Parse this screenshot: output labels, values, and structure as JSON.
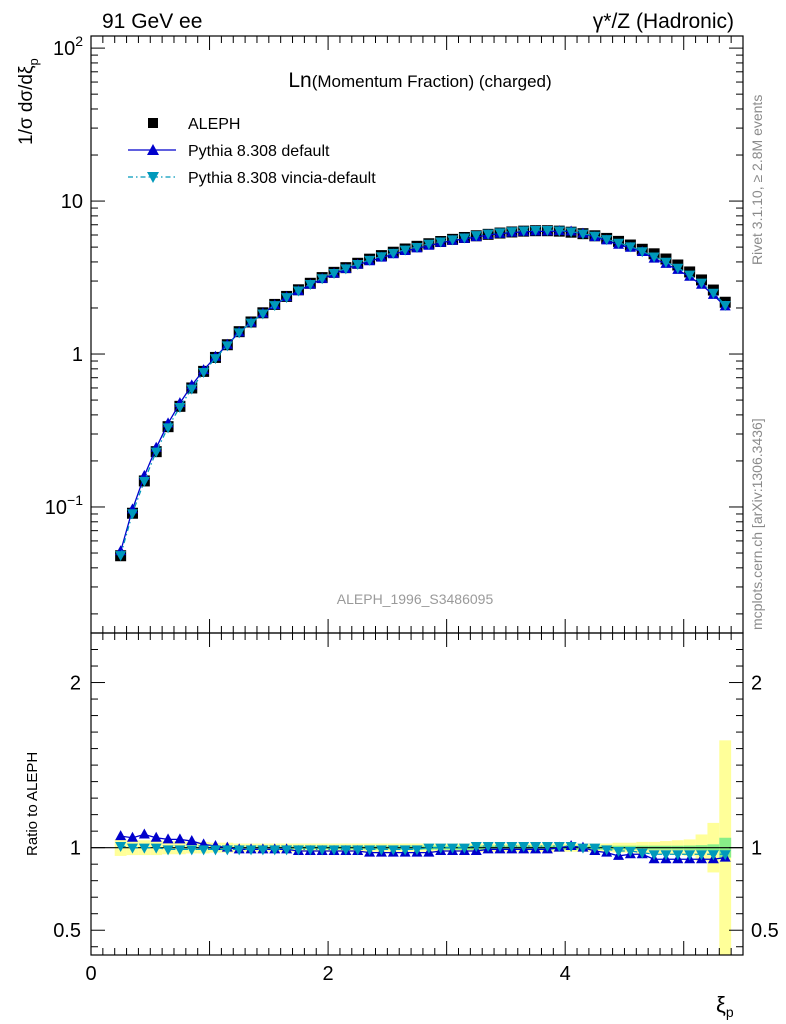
{
  "header": {
    "left": "91 GeV ee",
    "right": "γ*/Z (Hadronic)"
  },
  "side_text": {
    "rivet": "Rivet 3.1.10, ≥ 2.8M events",
    "mcplots": "mcplots.cern.ch [arXiv:1306.3436]"
  },
  "chart_data": {
    "type": "line",
    "title": "Ln(Momentum Fraction) (charged)",
    "title_prefix": "Ln",
    "title_rest": "(Momentum Fraction) (charged)",
    "analysis_id": "ALEPH_1996_S3486095",
    "ylabel": "1/σ dσ/dξ_p",
    "ylabel_main": "1/σ dσ/dξ",
    "ylabel_sub": "p",
    "xlabel_main": "ξ",
    "xlabel_sub": "p",
    "ratio_ylabel": "Ratio to ALEPH",
    "xlim": [
      0,
      5.5
    ],
    "ylim": [
      0.015,
      120
    ],
    "yscale": "log",
    "ratio_ylim": [
      0.35,
      2.3
    ],
    "x_ticks": [
      "0",
      "2",
      "4"
    ],
    "y_ticks": [
      "10^-1",
      "1",
      "10",
      "10^2"
    ],
    "ratio_ticks": [
      "0.5",
      "1",
      "2"
    ],
    "legend": [
      {
        "name": "ALEPH",
        "marker": "square"
      },
      {
        "name": "Pythia 8.308 default",
        "marker": "triangle-up"
      },
      {
        "name": "Pythia 8.308 vincia-default",
        "marker": "triangle-down"
      }
    ],
    "x": [
      0.25,
      0.35,
      0.45,
      0.55,
      0.65,
      0.75,
      0.85,
      0.95,
      1.05,
      1.15,
      1.25,
      1.35,
      1.45,
      1.55,
      1.65,
      1.75,
      1.85,
      1.95,
      2.05,
      2.15,
      2.25,
      2.35,
      2.45,
      2.55,
      2.65,
      2.75,
      2.85,
      2.95,
      3.05,
      3.15,
      3.25,
      3.35,
      3.45,
      3.55,
      3.65,
      3.75,
      3.85,
      3.95,
      4.05,
      4.15,
      4.25,
      4.35,
      4.45,
      4.55,
      4.65,
      4.75,
      4.85,
      4.95,
      5.05,
      5.15,
      5.25,
      5.35
    ],
    "series": [
      {
        "name": "ALEPH",
        "color": "#000000",
        "values": [
          0.048,
          0.091,
          0.148,
          0.23,
          0.335,
          0.455,
          0.6,
          0.77,
          0.95,
          1.15,
          1.4,
          1.62,
          1.86,
          2.11,
          2.38,
          2.63,
          2.9,
          3.16,
          3.42,
          3.67,
          3.92,
          4.17,
          4.4,
          4.63,
          4.86,
          5.06,
          5.26,
          5.44,
          5.62,
          5.78,
          5.93,
          6.06,
          6.18,
          6.28,
          6.36,
          6.4,
          6.4,
          6.36,
          6.26,
          6.12,
          5.93,
          5.7,
          5.45,
          5.16,
          4.84,
          4.52,
          4.18,
          3.82,
          3.44,
          3.05,
          2.62,
          2.18
        ],
        "err_stat": [
          0.001,
          0.001,
          0.002,
          0.002,
          0.002,
          0.003,
          0.003,
          0.004,
          0.004,
          0.005,
          0.006,
          0.006,
          0.007,
          0.007,
          0.008,
          0.008,
          0.009,
          0.009,
          0.01,
          0.01,
          0.01,
          0.011,
          0.011,
          0.011,
          0.012,
          0.012,
          0.012,
          0.012,
          0.012,
          0.013,
          0.013,
          0.013,
          0.013,
          0.013,
          0.013,
          0.013,
          0.013,
          0.013,
          0.013,
          0.013,
          0.013,
          0.012,
          0.012,
          0.012,
          0.012,
          0.012,
          0.012,
          0.012,
          0.013,
          0.015,
          0.02,
          0.06
        ],
        "err_total": [
          0.05,
          0.045,
          0.045,
          0.045,
          0.04,
          0.04,
          0.035,
          0.035,
          0.03,
          0.03,
          0.025,
          0.025,
          0.025,
          0.025,
          0.025,
          0.025,
          0.025,
          0.025,
          0.025,
          0.025,
          0.025,
          0.025,
          0.025,
          0.025,
          0.025,
          0.025,
          0.025,
          0.025,
          0.025,
          0.025,
          0.025,
          0.025,
          0.025,
          0.025,
          0.025,
          0.025,
          0.025,
          0.025,
          0.025,
          0.025,
          0.025,
          0.025,
          0.03,
          0.03,
          0.035,
          0.035,
          0.04,
          0.045,
          0.05,
          0.08,
          0.15,
          0.65
        ]
      },
      {
        "name": "Pythia 8.308 default",
        "color": "#0000cc",
        "ratio": [
          1.07,
          1.06,
          1.08,
          1.06,
          1.05,
          1.05,
          1.04,
          1.02,
          1.01,
          1.0,
          0.99,
          0.99,
          0.99,
          0.99,
          0.99,
          0.98,
          0.98,
          0.98,
          0.98,
          0.98,
          0.98,
          0.97,
          0.97,
          0.97,
          0.97,
          0.97,
          0.97,
          0.98,
          0.98,
          0.98,
          0.98,
          0.99,
          0.99,
          0.99,
          0.99,
          0.99,
          0.99,
          1.0,
          1.01,
          1.0,
          0.98,
          0.97,
          0.95,
          0.96,
          0.96,
          0.93,
          0.93,
          0.93,
          0.93,
          0.93,
          0.93,
          0.94
        ]
      },
      {
        "name": "Pythia 8.308 vincia-default",
        "color": "#0099bb",
        "ratio": [
          1.01,
          1.0,
          1.0,
          1.0,
          0.99,
          0.99,
          0.99,
          0.99,
          0.99,
          0.99,
          0.99,
          0.99,
          0.99,
          0.99,
          0.99,
          0.99,
          0.99,
          0.99,
          0.99,
          0.99,
          0.99,
          0.99,
          0.99,
          0.99,
          0.99,
          0.99,
          1.0,
          1.0,
          1.0,
          1.0,
          1.01,
          1.01,
          1.01,
          1.01,
          1.01,
          1.01,
          1.01,
          1.01,
          1.01,
          1.0,
          1.0,
          0.99,
          0.98,
          0.98,
          0.97,
          0.96,
          0.96,
          0.96,
          0.96,
          0.96,
          0.96,
          0.96
        ]
      }
    ]
  }
}
